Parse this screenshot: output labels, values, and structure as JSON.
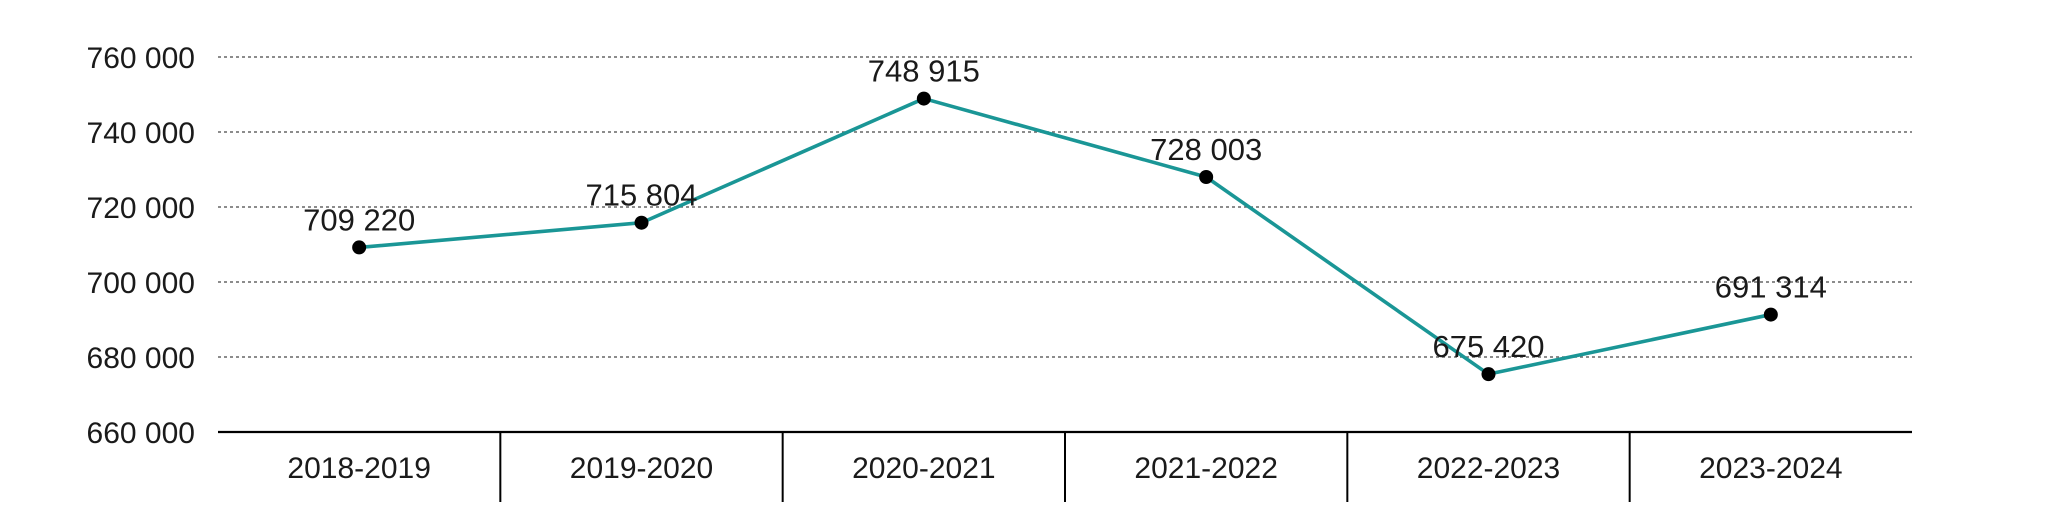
{
  "chart_data": {
    "type": "line",
    "categories": [
      "2018-2019",
      "2019-2020",
      "2020-2021",
      "2021-2022",
      "2022-2023",
      "2023-2024"
    ],
    "series": [
      {
        "values": [
          709220,
          715804,
          748915,
          728003,
          675420,
          691314
        ],
        "labels": [
          "709 220",
          "715 804",
          "748 915",
          "728 003",
          "675 420",
          "691 314"
        ]
      }
    ],
    "yticks": [
      660000,
      680000,
      700000,
      720000,
      740000,
      760000
    ],
    "ytick_labels": [
      "660 000",
      "680 000",
      "700 000",
      "720 000",
      "740 000",
      "760 000"
    ],
    "ylim": [
      660000,
      760000
    ],
    "grid": "horizontal-dotted",
    "title": "",
    "xlabel": "",
    "ylabel": "",
    "colors": {
      "line": "#1a9696",
      "marker": "#000000",
      "grid": "#666666",
      "axis": "#000000",
      "text": "#1a1a1a"
    }
  }
}
